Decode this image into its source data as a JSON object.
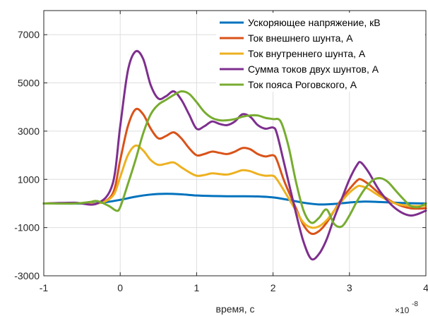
{
  "chart_data": {
    "type": "line",
    "xlabel": "время, с",
    "x_exponent_base": "×10",
    "x_exponent_power": "-8",
    "xlim": [
      -1,
      4
    ],
    "ylim": [
      -3000,
      8000
    ],
    "xticks": [
      "-1",
      "0",
      "1",
      "2",
      "3",
      "4"
    ],
    "yticks": [
      "7000",
      "5000",
      "3000",
      "1000",
      "-1000",
      "-3000"
    ],
    "grid": true,
    "legend_position": "top-right",
    "series": [
      {
        "name": "Ускоряющее напряжение, кВ",
        "color": "#0072BD",
        "points": [
          [
            -1,
            0
          ],
          [
            -0.4,
            0
          ],
          [
            -0.2,
            50
          ],
          [
            0,
            150
          ],
          [
            0.2,
            280
          ],
          [
            0.4,
            370
          ],
          [
            0.6,
            400
          ],
          [
            0.8,
            380
          ],
          [
            1.0,
            330
          ],
          [
            1.2,
            310
          ],
          [
            1.4,
            300
          ],
          [
            1.6,
            300
          ],
          [
            1.8,
            290
          ],
          [
            2.0,
            250
          ],
          [
            2.2,
            150
          ],
          [
            2.4,
            30
          ],
          [
            2.6,
            -40
          ],
          [
            2.8,
            -20
          ],
          [
            3.0,
            40
          ],
          [
            3.2,
            80
          ],
          [
            3.4,
            60
          ],
          [
            3.6,
            30
          ],
          [
            3.8,
            10
          ],
          [
            4.0,
            0
          ]
        ]
      },
      {
        "name": "Ток внешнего шунта, А",
        "color": "#D95319",
        "points": [
          [
            -1,
            0
          ],
          [
            -0.6,
            20
          ],
          [
            -0.3,
            0
          ],
          [
            -0.1,
            400
          ],
          [
            0,
            1800
          ],
          [
            0.1,
            3200
          ],
          [
            0.2,
            3900
          ],
          [
            0.3,
            3700
          ],
          [
            0.4,
            3100
          ],
          [
            0.5,
            2700
          ],
          [
            0.6,
            2800
          ],
          [
            0.7,
            2950
          ],
          [
            0.8,
            2700
          ],
          [
            0.9,
            2300
          ],
          [
            1.0,
            2000
          ],
          [
            1.1,
            2050
          ],
          [
            1.2,
            2150
          ],
          [
            1.3,
            2100
          ],
          [
            1.4,
            2050
          ],
          [
            1.5,
            2150
          ],
          [
            1.6,
            2300
          ],
          [
            1.7,
            2250
          ],
          [
            1.8,
            2050
          ],
          [
            1.9,
            1950
          ],
          [
            2.0,
            2000
          ],
          [
            2.05,
            1800
          ],
          [
            2.15,
            900
          ],
          [
            2.3,
            -200
          ],
          [
            2.4,
            -900
          ],
          [
            2.5,
            -1250
          ],
          [
            2.6,
            -1150
          ],
          [
            2.7,
            -800
          ],
          [
            2.8,
            -300
          ],
          [
            2.9,
            200
          ],
          [
            3.0,
            600
          ],
          [
            3.1,
            950
          ],
          [
            3.15,
            1000
          ],
          [
            3.25,
            800
          ],
          [
            3.4,
            400
          ],
          [
            3.6,
            0
          ],
          [
            3.8,
            -200
          ],
          [
            4.0,
            -200
          ]
        ]
      },
      {
        "name": "Ток внутреннего шунта, А",
        "color": "#EDB120",
        "points": [
          [
            -1,
            0
          ],
          [
            -0.6,
            20
          ],
          [
            -0.3,
            0
          ],
          [
            -0.1,
            300
          ],
          [
            0,
            1100
          ],
          [
            0.1,
            2000
          ],
          [
            0.2,
            2400
          ],
          [
            0.3,
            2200
          ],
          [
            0.4,
            1800
          ],
          [
            0.5,
            1600
          ],
          [
            0.6,
            1650
          ],
          [
            0.7,
            1700
          ],
          [
            0.8,
            1500
          ],
          [
            0.9,
            1300
          ],
          [
            1.0,
            1150
          ],
          [
            1.1,
            1180
          ],
          [
            1.2,
            1250
          ],
          [
            1.3,
            1220
          ],
          [
            1.4,
            1200
          ],
          [
            1.5,
            1280
          ],
          [
            1.6,
            1380
          ],
          [
            1.7,
            1340
          ],
          [
            1.8,
            1220
          ],
          [
            1.9,
            1150
          ],
          [
            2.0,
            1150
          ],
          [
            2.05,
            1000
          ],
          [
            2.15,
            500
          ],
          [
            2.3,
            -300
          ],
          [
            2.4,
            -800
          ],
          [
            2.5,
            -1000
          ],
          [
            2.6,
            -950
          ],
          [
            2.7,
            -700
          ],
          [
            2.8,
            -300
          ],
          [
            2.9,
            100
          ],
          [
            3.0,
            450
          ],
          [
            3.1,
            700
          ],
          [
            3.15,
            720
          ],
          [
            3.25,
            600
          ],
          [
            3.4,
            300
          ],
          [
            3.6,
            0
          ],
          [
            3.8,
            -100
          ],
          [
            4.0,
            -100
          ]
        ]
      },
      {
        "name": "Сумма токов двух шунтов, А",
        "color": "#7E2F8E",
        "points": [
          [
            -1,
            0
          ],
          [
            -0.6,
            30
          ],
          [
            -0.3,
            0
          ],
          [
            -0.1,
            800
          ],
          [
            0,
            3200
          ],
          [
            0.1,
            5500
          ],
          [
            0.2,
            6300
          ],
          [
            0.3,
            6000
          ],
          [
            0.4,
            4900
          ],
          [
            0.5,
            4350
          ],
          [
            0.6,
            4450
          ],
          [
            0.7,
            4650
          ],
          [
            0.8,
            4300
          ],
          [
            0.9,
            3700
          ],
          [
            1.0,
            3100
          ],
          [
            1.1,
            3200
          ],
          [
            1.2,
            3400
          ],
          [
            1.3,
            3300
          ],
          [
            1.4,
            3250
          ],
          [
            1.5,
            3400
          ],
          [
            1.6,
            3700
          ],
          [
            1.7,
            3600
          ],
          [
            1.8,
            3250
          ],
          [
            1.9,
            3100
          ],
          [
            2.0,
            3150
          ],
          [
            2.05,
            2900
          ],
          [
            2.15,
            1600
          ],
          [
            2.3,
            -400
          ],
          [
            2.4,
            -1600
          ],
          [
            2.5,
            -2300
          ],
          [
            2.6,
            -2100
          ],
          [
            2.7,
            -1500
          ],
          [
            2.8,
            -600
          ],
          [
            2.9,
            200
          ],
          [
            3.0,
            1000
          ],
          [
            3.1,
            1600
          ],
          [
            3.15,
            1700
          ],
          [
            3.25,
            1300
          ],
          [
            3.4,
            500
          ],
          [
            3.6,
            -200
          ],
          [
            3.8,
            -500
          ],
          [
            4.0,
            -300
          ]
        ]
      },
      {
        "name": "Ток пояса Роговского, А",
        "color": "#77AC30",
        "points": [
          [
            -1,
            0
          ],
          [
            -0.6,
            0
          ],
          [
            -0.4,
            60
          ],
          [
            -0.3,
            100
          ],
          [
            -0.15,
            -100
          ],
          [
            -0.05,
            -300
          ],
          [
            0,
            -150
          ],
          [
            0.1,
            800
          ],
          [
            0.2,
            1800
          ],
          [
            0.3,
            2900
          ],
          [
            0.4,
            3700
          ],
          [
            0.5,
            4100
          ],
          [
            0.6,
            4300
          ],
          [
            0.7,
            4500
          ],
          [
            0.8,
            4650
          ],
          [
            0.9,
            4550
          ],
          [
            1.0,
            4200
          ],
          [
            1.1,
            3800
          ],
          [
            1.2,
            3550
          ],
          [
            1.3,
            3450
          ],
          [
            1.4,
            3450
          ],
          [
            1.5,
            3500
          ],
          [
            1.6,
            3600
          ],
          [
            1.7,
            3650
          ],
          [
            1.8,
            3650
          ],
          [
            1.9,
            3550
          ],
          [
            2.0,
            3500
          ],
          [
            2.1,
            3400
          ],
          [
            2.2,
            2400
          ],
          [
            2.3,
            900
          ],
          [
            2.4,
            -300
          ],
          [
            2.5,
            -800
          ],
          [
            2.6,
            -600
          ],
          [
            2.7,
            -250
          ],
          [
            2.8,
            -850
          ],
          [
            2.9,
            -950
          ],
          [
            3.0,
            -500
          ],
          [
            3.1,
            100
          ],
          [
            3.2,
            600
          ],
          [
            3.3,
            950
          ],
          [
            3.4,
            1050
          ],
          [
            3.5,
            900
          ],
          [
            3.6,
            550
          ],
          [
            3.7,
            200
          ],
          [
            3.8,
            -100
          ],
          [
            3.9,
            -150
          ],
          [
            4.0,
            0
          ]
        ]
      }
    ]
  }
}
